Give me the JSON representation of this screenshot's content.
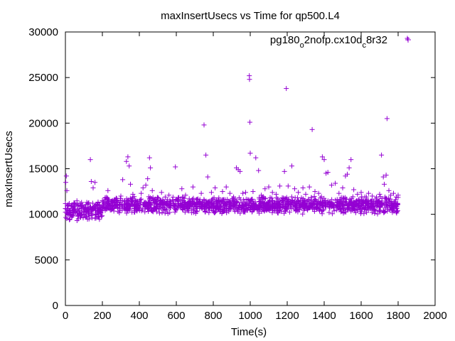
{
  "chart_data": {
    "type": "scatter",
    "title": "maxInsertUsecs vs Time for qp500.L4",
    "xlabel": "Time(s)",
    "ylabel": "maxInsertUsecs",
    "xlim": [
      0,
      2000
    ],
    "ylim": [
      0,
      30000
    ],
    "xticks": [
      0,
      200,
      400,
      600,
      800,
      1000,
      1200,
      1400,
      1600,
      1800,
      2000
    ],
    "yticks": [
      0,
      5000,
      10000,
      15000,
      20000,
      25000,
      30000
    ],
    "grid": false,
    "legend_position": "top-right",
    "marker": "+",
    "series": [
      {
        "name_parts": [
          "pg180",
          "o",
          "2nofp.cx10d",
          "c",
          "8r32"
        ],
        "color": "#9400d3",
        "points": [
          [
            2,
            13500
          ],
          [
            5,
            14200
          ],
          [
            8,
            12600
          ],
          [
            12,
            11000
          ],
          [
            20,
            10200
          ],
          [
            35,
            9800
          ],
          [
            50,
            10400
          ],
          [
            70,
            9500
          ],
          [
            90,
            10000
          ],
          [
            110,
            9700
          ],
          [
            125,
            10100
          ],
          [
            135,
            16000
          ],
          [
            140,
            13600
          ],
          [
            150,
            12900
          ],
          [
            160,
            13500
          ],
          [
            170,
            11100
          ],
          [
            185,
            10900
          ],
          [
            200,
            11500
          ],
          [
            215,
            11800
          ],
          [
            230,
            12600
          ],
          [
            250,
            11400
          ],
          [
            270,
            11600
          ],
          [
            290,
            11300
          ],
          [
            300,
            12000
          ],
          [
            310,
            13800
          ],
          [
            320,
            11100
          ],
          [
            330,
            15800
          ],
          [
            338,
            16300
          ],
          [
            345,
            15300
          ],
          [
            352,
            13300
          ],
          [
            365,
            12200
          ],
          [
            380,
            11500
          ],
          [
            395,
            11200
          ],
          [
            410,
            12300
          ],
          [
            420,
            12900
          ],
          [
            435,
            13200
          ],
          [
            445,
            13900
          ],
          [
            455,
            16200
          ],
          [
            460,
            15100
          ],
          [
            470,
            12600
          ],
          [
            485,
            11300
          ],
          [
            500,
            11800
          ],
          [
            520,
            12400
          ],
          [
            540,
            11900
          ],
          [
            560,
            12100
          ],
          [
            580,
            11600
          ],
          [
            595,
            15200
          ],
          [
            610,
            11800
          ],
          [
            630,
            12800
          ],
          [
            650,
            12100
          ],
          [
            670,
            11700
          ],
          [
            690,
            13000
          ],
          [
            710,
            11600
          ],
          [
            735,
            12300
          ],
          [
            750,
            19800
          ],
          [
            760,
            16500
          ],
          [
            770,
            14100
          ],
          [
            790,
            12400
          ],
          [
            810,
            12900
          ],
          [
            830,
            11800
          ],
          [
            850,
            12500
          ],
          [
            870,
            13000
          ],
          [
            890,
            12300
          ],
          [
            910,
            11900
          ],
          [
            925,
            15100
          ],
          [
            935,
            14900
          ],
          [
            945,
            14700
          ],
          [
            960,
            12300
          ],
          [
            975,
            12400
          ],
          [
            995,
            25200
          ],
          [
            996,
            24800
          ],
          [
            998,
            20100
          ],
          [
            1000,
            16700
          ],
          [
            1015,
            12500
          ],
          [
            1030,
            16200
          ],
          [
            1045,
            14800
          ],
          [
            1060,
            12100
          ],
          [
            1080,
            12800
          ],
          [
            1100,
            13000
          ],
          [
            1120,
            12400
          ],
          [
            1140,
            12200
          ],
          [
            1160,
            13100
          ],
          [
            1185,
            14700
          ],
          [
            1195,
            23800
          ],
          [
            1205,
            13100
          ],
          [
            1225,
            15300
          ],
          [
            1240,
            12800
          ],
          [
            1260,
            12400
          ],
          [
            1285,
            12900
          ],
          [
            1300,
            12200
          ],
          [
            1320,
            13000
          ],
          [
            1335,
            19300
          ],
          [
            1350,
            12500
          ],
          [
            1370,
            12300
          ],
          [
            1390,
            16300
          ],
          [
            1400,
            16000
          ],
          [
            1410,
            14500
          ],
          [
            1420,
            14600
          ],
          [
            1440,
            13200
          ],
          [
            1460,
            13400
          ],
          [
            1480,
            12300
          ],
          [
            1500,
            12900
          ],
          [
            1515,
            14200
          ],
          [
            1525,
            14400
          ],
          [
            1535,
            15100
          ],
          [
            1545,
            16000
          ],
          [
            1560,
            12700
          ],
          [
            1580,
            12200
          ],
          [
            1600,
            12400
          ],
          [
            1620,
            11900
          ],
          [
            1640,
            12300
          ],
          [
            1660,
            12000
          ],
          [
            1680,
            11700
          ],
          [
            1700,
            12200
          ],
          [
            1710,
            16500
          ],
          [
            1720,
            14100
          ],
          [
            1725,
            13300
          ],
          [
            1735,
            14300
          ],
          [
            1740,
            20500
          ],
          [
            1750,
            12600
          ],
          [
            1760,
            12100
          ],
          [
            1775,
            12300
          ],
          [
            1790,
            11900
          ],
          [
            1800,
            12100
          ],
          [
            1850,
            29300
          ]
        ]
      }
    ],
    "dense_band": [
      {
        "x_from": 0,
        "x_to": 200,
        "y_from": 9300,
        "y_to": 11500
      },
      {
        "x_from": 200,
        "x_to": 1800,
        "y_from": 10000,
        "y_to": 12000
      }
    ]
  }
}
